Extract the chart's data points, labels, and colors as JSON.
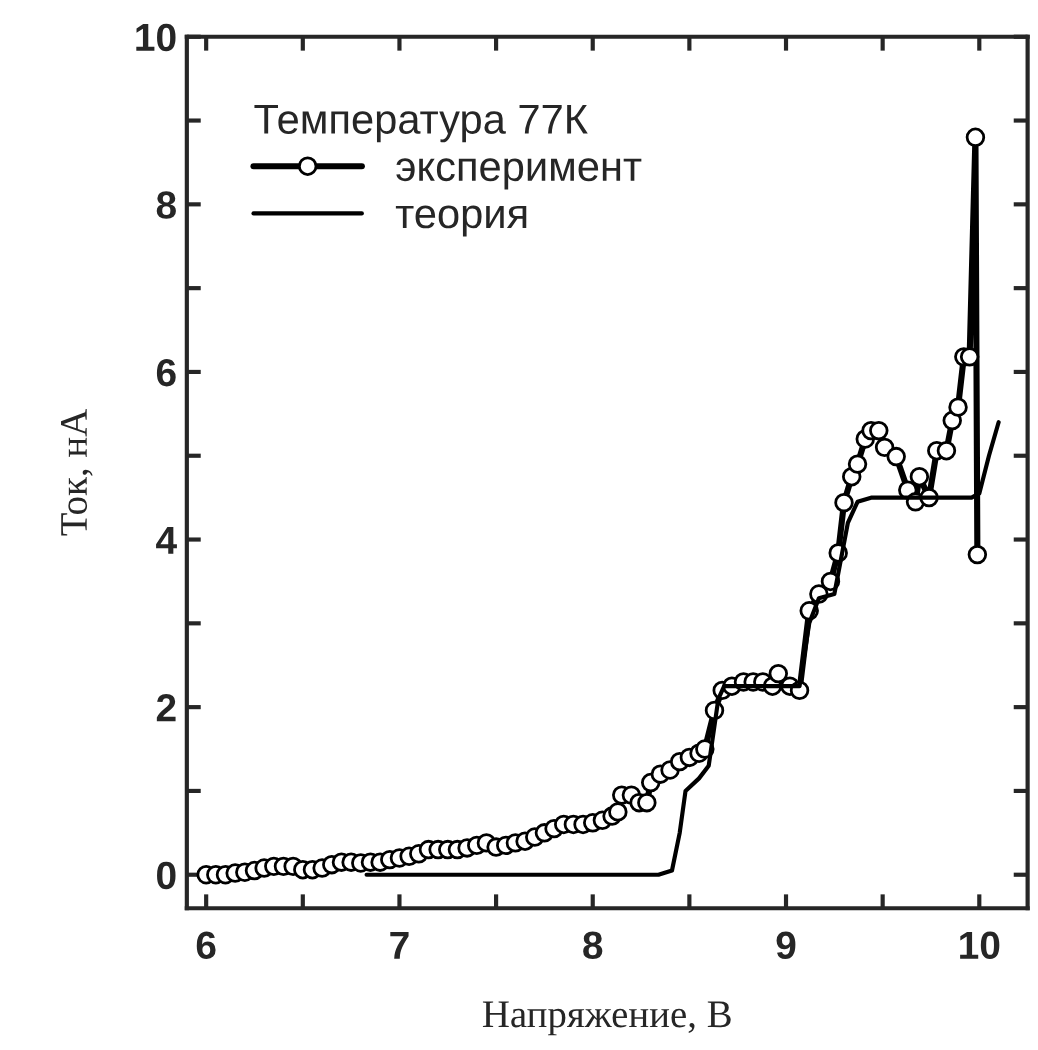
{
  "chart_data": {
    "type": "line",
    "xlabel": "Напряжение, В",
    "ylabel": "Ток, нА",
    "legend_title": "Температура 77К",
    "legend": "top left",
    "grid": false,
    "xlim": [
      5.9,
      10.25
    ],
    "ylim": [
      -0.4,
      10
    ],
    "xticks": [
      6,
      {
        "value": 6.5,
        "label": null
      },
      7,
      {
        "value": 7.5,
        "label": null
      },
      8,
      {
        "value": 8.5,
        "label": null
      },
      9,
      {
        "value": 9.5,
        "label": null
      },
      10
    ],
    "yticks": [
      0,
      {
        "value": 1,
        "label": null
      },
      2,
      {
        "value": 3,
        "label": null
      },
      4,
      {
        "value": 5,
        "label": null
      },
      6,
      {
        "value": 7,
        "label": null
      },
      8,
      {
        "value": 9,
        "label": null
      },
      10
    ],
    "series": [
      {
        "name": "эксперимент",
        "color": "#000000",
        "marker": "circle",
        "line_style": "solid",
        "x": [
          6.0,
          6.05,
          6.1,
          6.15,
          6.2,
          6.25,
          6.3,
          6.35,
          6.4,
          6.45,
          6.5,
          6.55,
          6.6,
          6.65,
          6.7,
          6.75,
          6.8,
          6.85,
          6.9,
          6.95,
          7.0,
          7.05,
          7.1,
          7.15,
          7.2,
          7.25,
          7.3,
          7.35,
          7.4,
          7.45,
          7.5,
          7.55,
          7.6,
          7.65,
          7.7,
          7.75,
          7.8,
          7.85,
          7.9,
          7.95,
          8.0,
          8.05,
          8.1,
          8.13,
          8.15,
          8.2,
          8.24,
          8.28,
          8.3,
          8.35,
          8.4,
          8.45,
          8.5,
          8.55,
          8.58,
          8.63,
          8.67,
          8.72,
          8.78,
          8.83,
          8.88,
          8.93,
          8.96,
          9.02,
          9.07,
          9.12,
          9.17,
          9.23,
          9.27,
          9.3,
          9.34,
          9.37,
          9.41,
          9.44,
          9.48,
          9.51,
          9.57,
          9.63,
          9.67,
          9.69,
          9.74,
          9.78,
          9.83,
          9.86,
          9.89,
          9.92,
          9.95,
          9.98,
          9.99
        ],
        "values": [
          0.0,
          0.0,
          0.0,
          0.02,
          0.03,
          0.05,
          0.08,
          0.1,
          0.1,
          0.1,
          0.06,
          0.06,
          0.08,
          0.12,
          0.15,
          0.15,
          0.14,
          0.15,
          0.15,
          0.18,
          0.2,
          0.22,
          0.25,
          0.3,
          0.3,
          0.3,
          0.3,
          0.32,
          0.35,
          0.38,
          0.33,
          0.35,
          0.38,
          0.4,
          0.45,
          0.5,
          0.55,
          0.6,
          0.6,
          0.6,
          0.62,
          0.65,
          0.7,
          0.75,
          0.95,
          0.95,
          0.86,
          0.86,
          1.1,
          1.2,
          1.25,
          1.35,
          1.4,
          1.45,
          1.5,
          1.96,
          2.2,
          2.25,
          2.3,
          2.3,
          2.3,
          2.25,
          2.4,
          2.25,
          2.2,
          3.15,
          3.35,
          3.5,
          3.84,
          4.44,
          4.75,
          4.9,
          5.2,
          5.3,
          5.3,
          5.1,
          4.99,
          4.59,
          4.45,
          4.75,
          4.5,
          5.06,
          5.06,
          5.42,
          5.58,
          6.18,
          6.18,
          8.8,
          3.82
        ]
      },
      {
        "name": "теория",
        "color": "#000000",
        "marker": "none",
        "line_style": "solid",
        "x": [
          6.83,
          8.34,
          8.41,
          8.45,
          8.48,
          8.55,
          8.6,
          8.65,
          8.68,
          8.75,
          9.07,
          9.12,
          9.17,
          9.25,
          9.32,
          9.37,
          9.44,
          9.96,
          10.0,
          10.05,
          10.1
        ],
        "values": [
          0,
          0,
          0.05,
          0.5,
          1.0,
          1.15,
          1.3,
          2.1,
          2.25,
          2.25,
          2.25,
          3.0,
          3.3,
          3.35,
          4.2,
          4.45,
          4.5,
          4.5,
          4.55,
          5.0,
          5.4
        ]
      }
    ]
  }
}
